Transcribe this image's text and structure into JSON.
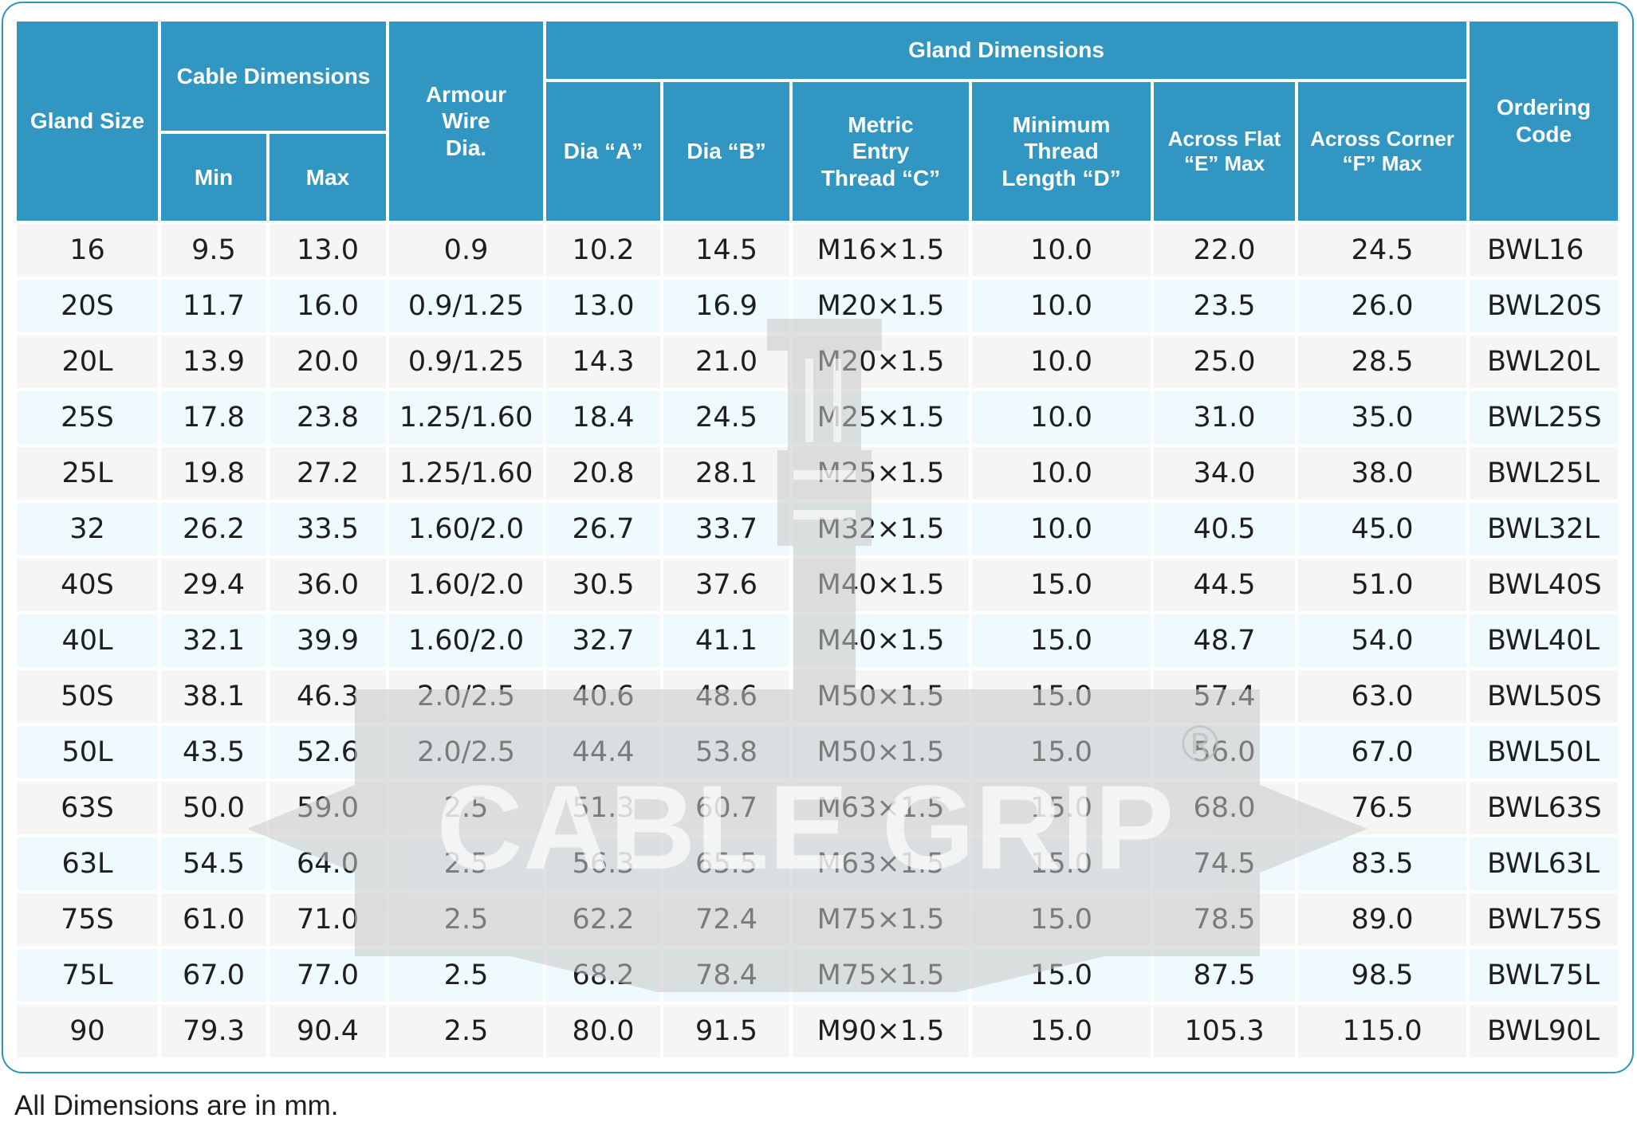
{
  "header": {
    "gland_size": "Gland Size",
    "cable_dimensions": "Cable Dimensions",
    "min": "Min",
    "max": "Max",
    "armour_wire_dia": "Armour\nWire\nDia.",
    "gland_dimensions": "Gland Dimensions",
    "dia_a": "Dia “A”",
    "dia_b": "Dia “B”",
    "metric_entry_thread": "Metric\nEntry\nThread “C”",
    "minimum_thread_length": "Minimum\nThread\nLength “D”",
    "across_flat": "Across Flat\n“E” Max",
    "across_corner": "Across Corner\n“F” Max",
    "ordering_code": "Ordering\nCode"
  },
  "rows": [
    {
      "size": "16",
      "min": "9.5",
      "max": "13.0",
      "armour": "0.9",
      "dia_a": "10.2",
      "dia_b": "14.5",
      "thread": "M16×1.5",
      "length": "10.0",
      "flat": "22.0",
      "corner": "24.5",
      "code": "BWL16"
    },
    {
      "size": "20S",
      "min": "11.7",
      "max": "16.0",
      "armour": "0.9/1.25",
      "dia_a": "13.0",
      "dia_b": "16.9",
      "thread": "M20×1.5",
      "length": "10.0",
      "flat": "23.5",
      "corner": "26.0",
      "code": "BWL20S"
    },
    {
      "size": "20L",
      "min": "13.9",
      "max": "20.0",
      "armour": "0.9/1.25",
      "dia_a": "14.3",
      "dia_b": "21.0",
      "thread": "M20×1.5",
      "length": "10.0",
      "flat": "25.0",
      "corner": "28.5",
      "code": "BWL20L"
    },
    {
      "size": "25S",
      "min": "17.8",
      "max": "23.8",
      "armour": "1.25/1.60",
      "dia_a": "18.4",
      "dia_b": "24.5",
      "thread": "M25×1.5",
      "length": "10.0",
      "flat": "31.0",
      "corner": "35.0",
      "code": "BWL25S"
    },
    {
      "size": "25L",
      "min": "19.8",
      "max": "27.2",
      "armour": "1.25/1.60",
      "dia_a": "20.8",
      "dia_b": "28.1",
      "thread": "M25×1.5",
      "length": "10.0",
      "flat": "34.0",
      "corner": "38.0",
      "code": "BWL25L"
    },
    {
      "size": "32",
      "min": "26.2",
      "max": "33.5",
      "armour": "1.60/2.0",
      "dia_a": "26.7",
      "dia_b": "33.7",
      "thread": "M32×1.5",
      "length": "10.0",
      "flat": "40.5",
      "corner": "45.0",
      "code": "BWL32L"
    },
    {
      "size": "40S",
      "min": "29.4",
      "max": "36.0",
      "armour": "1.60/2.0",
      "dia_a": "30.5",
      "dia_b": "37.6",
      "thread": "M40×1.5",
      "length": "15.0",
      "flat": "44.5",
      "corner": "51.0",
      "code": "BWL40S"
    },
    {
      "size": "40L",
      "min": "32.1",
      "max": "39.9",
      "armour": "1.60/2.0",
      "dia_a": "32.7",
      "dia_b": "41.1",
      "thread": "M40×1.5",
      "length": "15.0",
      "flat": "48.7",
      "corner": "54.0",
      "code": "BWL40L"
    },
    {
      "size": "50S",
      "min": "38.1",
      "max": "46.3",
      "armour": "2.0/2.5",
      "dia_a": "40.6",
      "dia_b": "48.6",
      "thread": "M50×1.5",
      "length": "15.0",
      "flat": "57.4",
      "corner": "63.0",
      "code": "BWL50S"
    },
    {
      "size": "50L",
      "min": "43.5",
      "max": "52.6",
      "armour": "2.0/2.5",
      "dia_a": "44.4",
      "dia_b": "53.8",
      "thread": "M50×1.5",
      "length": "15.0",
      "flat": "56.0",
      "corner": "67.0",
      "code": "BWL50L"
    },
    {
      "size": "63S",
      "min": "50.0",
      "max": "59.0",
      "armour": "2.5",
      "dia_a": "51.3",
      "dia_b": "60.7",
      "thread": "M63×1.5",
      "length": "15.0",
      "flat": "68.0",
      "corner": "76.5",
      "code": "BWL63S"
    },
    {
      "size": "63L",
      "min": "54.5",
      "max": "64.0",
      "armour": "2.5",
      "dia_a": "56.3",
      "dia_b": "65.5",
      "thread": "M63×1.5",
      "length": "15.0",
      "flat": "74.5",
      "corner": "83.5",
      "code": "BWL63L"
    },
    {
      "size": "75S",
      "min": "61.0",
      "max": "71.0",
      "armour": "2.5",
      "dia_a": "62.2",
      "dia_b": "72.4",
      "thread": "M75×1.5",
      "length": "15.0",
      "flat": "78.5",
      "corner": "89.0",
      "code": "BWL75S"
    },
    {
      "size": "75L",
      "min": "67.0",
      "max": "77.0",
      "armour": "2.5",
      "dia_a": "68.2",
      "dia_b": "78.4",
      "thread": "M75×1.5",
      "length": "15.0",
      "flat": "87.5",
      "corner": "98.5",
      "code": "BWL75L"
    },
    {
      "size": "90",
      "min": "79.3",
      "max": "90.4",
      "armour": "2.5",
      "dia_a": "80.0",
      "dia_b": "91.5",
      "thread": "M90×1.5",
      "length": "15.0",
      "flat": "105.3",
      "corner": "115.0",
      "code": "BWL90L"
    }
  ],
  "watermark": {
    "text": "CABLE GRIP",
    "registered_mark": "®",
    "icon": "cable-gland-logo-icon"
  },
  "footnote": "All Dimensions are in mm.",
  "colors": {
    "header_bg": "#3296c2",
    "header_text": "#ffffff",
    "row_grey": "#ececec",
    "row_blue": "#e0f6fc",
    "frame_border": "#2b95bd",
    "watermark": "#c8c8c8"
  }
}
